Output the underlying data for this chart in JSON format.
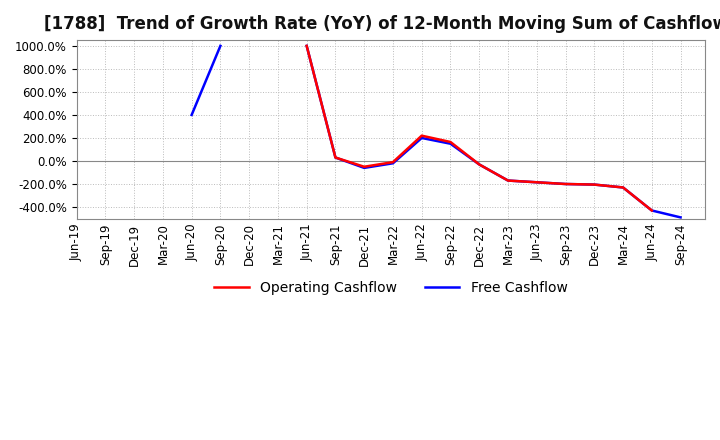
{
  "title": "[1788]  Trend of Growth Rate (YoY) of 12-Month Moving Sum of Cashflows",
  "background_color": "#ffffff",
  "grid_color": "#bbbbbb",
  "ylim": [
    -500,
    1050
  ],
  "yticks": [
    -400,
    -200,
    0,
    200,
    400,
    600,
    800,
    1000
  ],
  "x_labels": [
    "Jun-19",
    "Sep-19",
    "Dec-19",
    "Mar-20",
    "Jun-20",
    "Sep-20",
    "Dec-20",
    "Mar-21",
    "Jun-21",
    "Sep-21",
    "Dec-21",
    "Mar-22",
    "Jun-22",
    "Sep-22",
    "Dec-22",
    "Mar-23",
    "Jun-23",
    "Sep-23",
    "Dec-23",
    "Mar-24",
    "Jun-24",
    "Sep-24"
  ],
  "operating_cashflow": [
    null,
    null,
    null,
    null,
    null,
    1000,
    null,
    null,
    1000,
    30,
    -50,
    -30,
    220,
    170,
    -30,
    -170,
    -185,
    -200,
    -200,
    -230,
    -430,
    null
  ],
  "free_cashflow": [
    null,
    null,
    null,
    null,
    400,
    1000,
    null,
    null,
    1000,
    30,
    -60,
    -40,
    200,
    160,
    -30,
    -170,
    -185,
    -200,
    -200,
    -230,
    -430,
    -490
  ],
  "op_color": "#ff0000",
  "free_color": "#0000ff",
  "title_fontsize": 12,
  "tick_fontsize": 8.5,
  "legend_fontsize": 10
}
